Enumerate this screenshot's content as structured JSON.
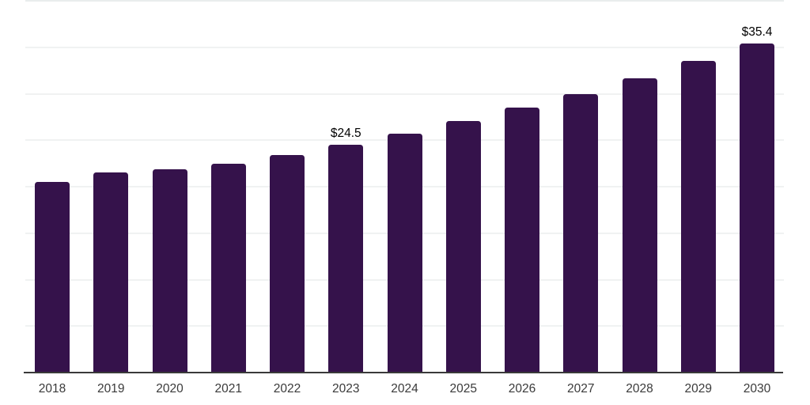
{
  "chart_data": {
    "type": "bar",
    "title": "",
    "xlabel": "",
    "ylabel": "",
    "categories": [
      "2018",
      "2019",
      "2020",
      "2021",
      "2022",
      "2023",
      "2024",
      "2025",
      "2026",
      "2027",
      "2028",
      "2029",
      "2030"
    ],
    "values": [
      20.5,
      21.5,
      21.9,
      22.5,
      23.4,
      24.5,
      25.7,
      27.1,
      28.5,
      30.0,
      31.7,
      33.5,
      35.4
    ],
    "value_prefix": "$",
    "data_labels": [
      {
        "index": 5,
        "category": "2023",
        "text": "$24.5"
      },
      {
        "index": 12,
        "category": "2030",
        "text": "$35.4"
      }
    ],
    "ylim": [
      0,
      40
    ],
    "grid_step": 5,
    "grid": true,
    "legend": "none",
    "y_axis_tick_labels_visible": false,
    "colors": {
      "bar": "#35124B",
      "gridline": "#F0F2F2",
      "top_border": "#E9EDED",
      "axis_line": "#3A3A3A",
      "tick_label": "#3A3A3A",
      "data_label": "#000000",
      "background": "#FFFFFF"
    }
  }
}
